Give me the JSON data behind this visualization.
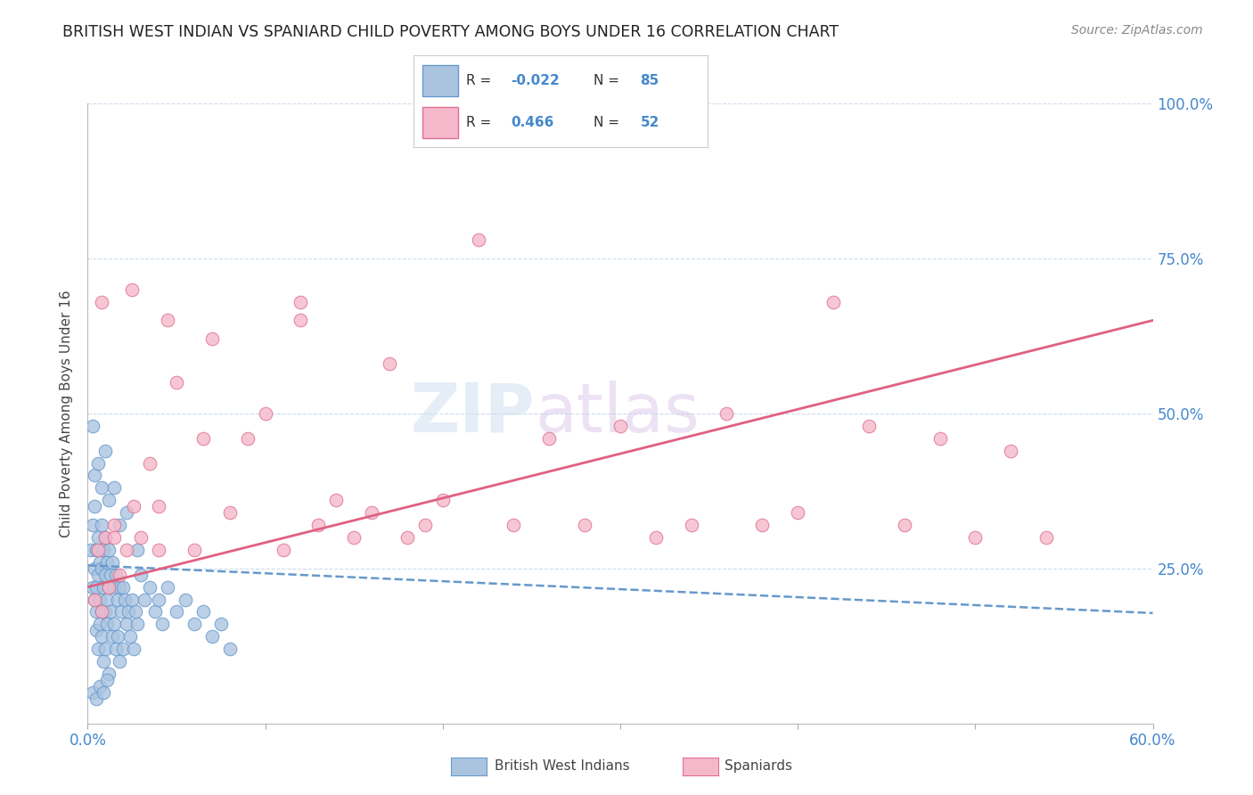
{
  "title": "BRITISH WEST INDIAN VS SPANIARD CHILD POVERTY AMONG BOYS UNDER 16 CORRELATION CHART",
  "source": "Source: ZipAtlas.com",
  "ylabel": "Child Poverty Among Boys Under 16",
  "xlim": [
    0,
    0.6
  ],
  "ylim": [
    0,
    1.0
  ],
  "xtick_vals": [
    0.0,
    0.1,
    0.2,
    0.3,
    0.4,
    0.5,
    0.6
  ],
  "xtick_labels": [
    "0.0%",
    "",
    "",
    "",
    "",
    "",
    "60.0%"
  ],
  "ytick_vals": [
    0.0,
    0.25,
    0.5,
    0.75,
    1.0
  ],
  "ytick_labels_right": [
    "",
    "25.0%",
    "50.0%",
    "75.0%",
    "100.0%"
  ],
  "blue_color": "#aac4e0",
  "blue_edge_color": "#6699cc",
  "pink_color": "#f5b8cb",
  "pink_edge_color": "#e07090",
  "blue_line_color": "#6699cc",
  "pink_line_color": "#e06080",
  "legend_label1": "British West Indians",
  "legend_label2": "Spaniards",
  "watermark": "ZIPatlas",
  "background_color": "#ffffff",
  "grid_color": "#ccddee",
  "title_color": "#222222",
  "right_tick_color": "#4488cc",
  "blue_trend_x0": 0.0,
  "blue_trend_x1": 0.6,
  "blue_trend_y0": 0.255,
  "blue_trend_y1": 0.178,
  "pink_trend_x0": 0.0,
  "pink_trend_x1": 0.6,
  "pink_trend_y0": 0.22,
  "pink_trend_y1": 0.65,
  "blue_scatter_x": [
    0.002,
    0.003,
    0.003,
    0.004,
    0.004,
    0.004,
    0.005,
    0.005,
    0.005,
    0.005,
    0.006,
    0.006,
    0.006,
    0.007,
    0.007,
    0.007,
    0.008,
    0.008,
    0.008,
    0.008,
    0.009,
    0.009,
    0.009,
    0.01,
    0.01,
    0.01,
    0.01,
    0.011,
    0.011,
    0.011,
    0.012,
    0.012,
    0.012,
    0.013,
    0.013,
    0.014,
    0.014,
    0.015,
    0.015,
    0.016,
    0.016,
    0.017,
    0.017,
    0.018,
    0.018,
    0.019,
    0.02,
    0.02,
    0.021,
    0.022,
    0.023,
    0.024,
    0.025,
    0.026,
    0.027,
    0.028,
    0.03,
    0.032,
    0.035,
    0.038,
    0.04,
    0.042,
    0.045,
    0.05,
    0.055,
    0.06,
    0.065,
    0.07,
    0.075,
    0.08,
    0.003,
    0.004,
    0.006,
    0.008,
    0.01,
    0.012,
    0.015,
    0.018,
    0.022,
    0.028,
    0.003,
    0.005,
    0.007,
    0.009,
    0.011
  ],
  "blue_scatter_y": [
    0.28,
    0.32,
    0.22,
    0.25,
    0.2,
    0.35,
    0.18,
    0.22,
    0.28,
    0.15,
    0.3,
    0.24,
    0.12,
    0.26,
    0.2,
    0.16,
    0.32,
    0.25,
    0.18,
    0.14,
    0.28,
    0.22,
    0.1,
    0.3,
    0.24,
    0.18,
    0.12,
    0.26,
    0.2,
    0.16,
    0.28,
    0.22,
    0.08,
    0.24,
    0.18,
    0.26,
    0.14,
    0.22,
    0.16,
    0.24,
    0.12,
    0.2,
    0.14,
    0.22,
    0.1,
    0.18,
    0.22,
    0.12,
    0.2,
    0.16,
    0.18,
    0.14,
    0.2,
    0.12,
    0.18,
    0.16,
    0.24,
    0.2,
    0.22,
    0.18,
    0.2,
    0.16,
    0.22,
    0.18,
    0.2,
    0.16,
    0.18,
    0.14,
    0.16,
    0.12,
    0.48,
    0.4,
    0.42,
    0.38,
    0.44,
    0.36,
    0.38,
    0.32,
    0.34,
    0.28,
    0.05,
    0.04,
    0.06,
    0.05,
    0.07
  ],
  "pink_scatter_x": [
    0.004,
    0.006,
    0.008,
    0.01,
    0.012,
    0.015,
    0.018,
    0.022,
    0.026,
    0.03,
    0.035,
    0.04,
    0.045,
    0.05,
    0.06,
    0.07,
    0.08,
    0.09,
    0.1,
    0.11,
    0.12,
    0.13,
    0.14,
    0.15,
    0.16,
    0.17,
    0.18,
    0.19,
    0.2,
    0.22,
    0.24,
    0.26,
    0.28,
    0.3,
    0.32,
    0.34,
    0.36,
    0.38,
    0.4,
    0.42,
    0.44,
    0.46,
    0.48,
    0.5,
    0.52,
    0.54,
    0.008,
    0.015,
    0.025,
    0.04,
    0.065,
    0.12
  ],
  "pink_scatter_y": [
    0.2,
    0.28,
    0.18,
    0.3,
    0.22,
    0.32,
    0.24,
    0.28,
    0.35,
    0.3,
    0.42,
    0.35,
    0.65,
    0.55,
    0.28,
    0.62,
    0.34,
    0.46,
    0.5,
    0.28,
    0.65,
    0.32,
    0.36,
    0.3,
    0.34,
    0.58,
    0.3,
    0.32,
    0.36,
    0.78,
    0.32,
    0.46,
    0.32,
    0.48,
    0.3,
    0.32,
    0.5,
    0.32,
    0.34,
    0.68,
    0.48,
    0.32,
    0.46,
    0.3,
    0.44,
    0.3,
    0.68,
    0.3,
    0.7,
    0.28,
    0.46,
    0.68
  ]
}
